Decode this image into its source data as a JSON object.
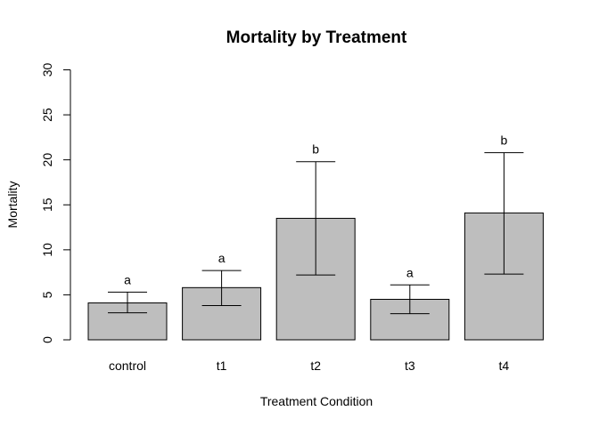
{
  "chart_data": {
    "type": "bar",
    "title": "Mortality by Treatment",
    "xlabel": "Treatment Condition",
    "ylabel": "Mortality",
    "categories": [
      "control",
      "t1",
      "t2",
      "t3",
      "t4"
    ],
    "values": [
      4.1,
      5.8,
      13.5,
      4.5,
      14.1
    ],
    "error_low": [
      3.0,
      3.8,
      7.2,
      2.9,
      7.3
    ],
    "error_high": [
      5.3,
      7.7,
      19.8,
      6.1,
      20.8
    ],
    "group_letters": [
      "a",
      "a",
      "b",
      "a",
      "b"
    ],
    "ylim": [
      0,
      30
    ],
    "yticks": [
      0,
      5,
      10,
      15,
      20,
      25,
      30
    ],
    "bar_color": "#bebebe",
    "grid": false
  }
}
